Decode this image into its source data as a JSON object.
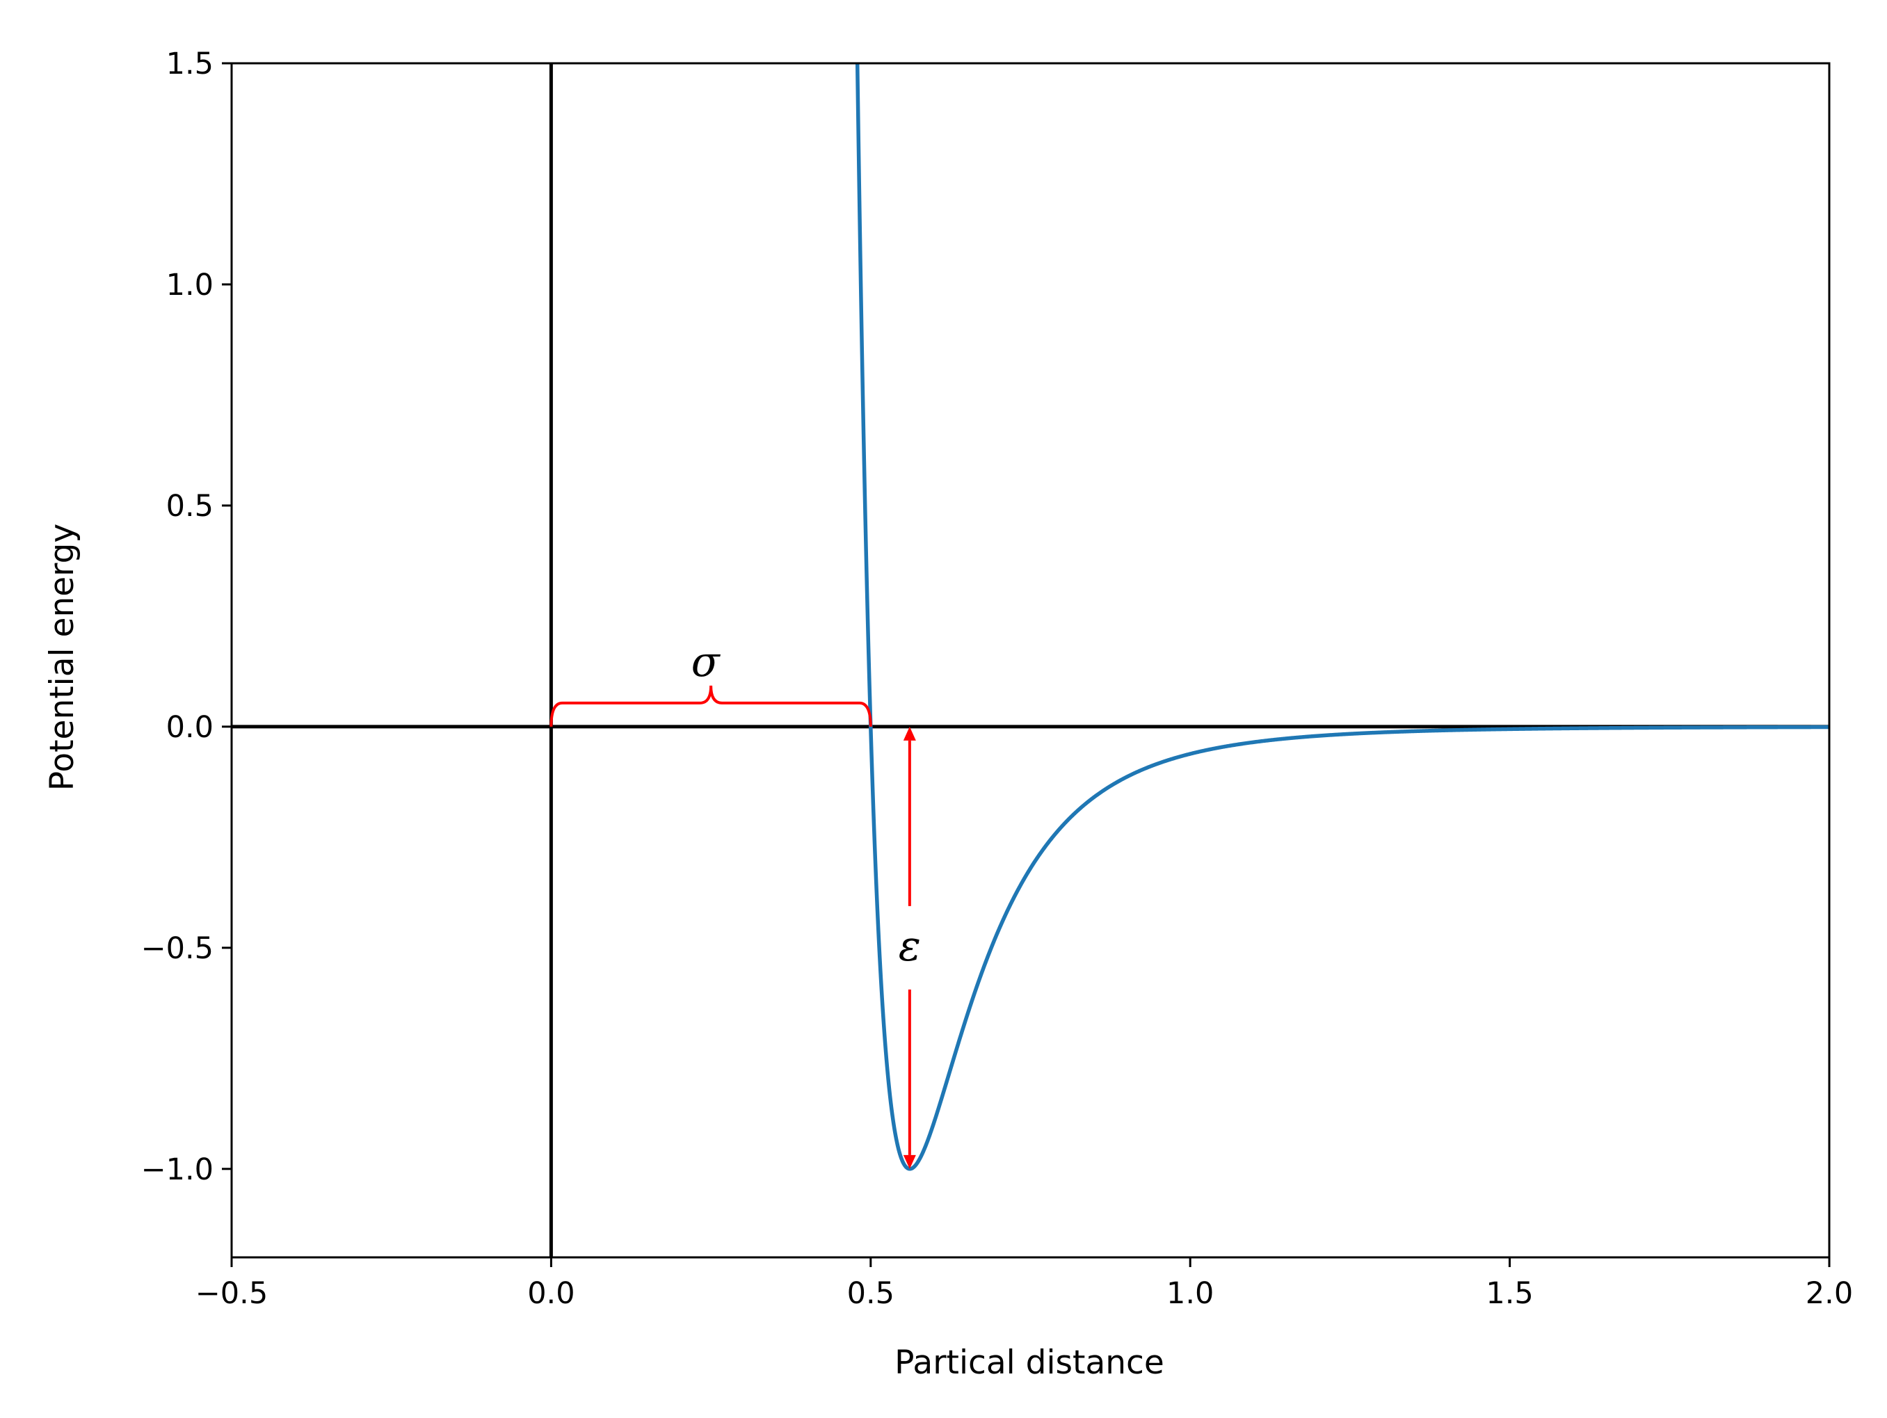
{
  "chart_data": {
    "type": "line",
    "title": "",
    "xlabel": "Partical distance",
    "ylabel": "Potential energy",
    "xlim": [
      -0.5,
      2.0
    ],
    "ylim": [
      -1.2,
      1.5
    ],
    "grid": false,
    "x_ticks": [
      {
        "value": -0.5,
        "label": "−0.5"
      },
      {
        "value": 0.0,
        "label": "0.0"
      },
      {
        "value": 0.5,
        "label": "0.5"
      },
      {
        "value": 1.0,
        "label": "1.0"
      },
      {
        "value": 1.5,
        "label": "1.5"
      },
      {
        "value": 2.0,
        "label": "2.0"
      }
    ],
    "y_ticks": [
      {
        "value": -1.0,
        "label": "−1.0"
      },
      {
        "value": -0.5,
        "label": "−0.5"
      },
      {
        "value": 0.0,
        "label": "0.0"
      },
      {
        "value": 0.5,
        "label": "0.5"
      },
      {
        "value": 1.0,
        "label": "1.0"
      },
      {
        "value": 1.5,
        "label": "1.5"
      }
    ],
    "series": [
      {
        "color": "#1f77b4",
        "function": "lennard-jones",
        "epsilon": 1.0,
        "sigma": 0.5,
        "x_range": [
          0.45,
          2.0
        ]
      }
    ],
    "reference_lines": [
      {
        "orientation": "horizontal",
        "value": 0.0,
        "color": "#000000"
      },
      {
        "orientation": "vertical",
        "value": 0.0,
        "color": "#000000"
      }
    ],
    "annotations": [
      {
        "label": "σ",
        "type": "brace",
        "from": 0.0,
        "to": 0.5,
        "y": 0.0,
        "color": "#ff0000"
      },
      {
        "label": "ε",
        "type": "double-arrow",
        "x": 0.561,
        "from": 0.0,
        "to": -1.0,
        "color": "#ff0000"
      }
    ]
  }
}
